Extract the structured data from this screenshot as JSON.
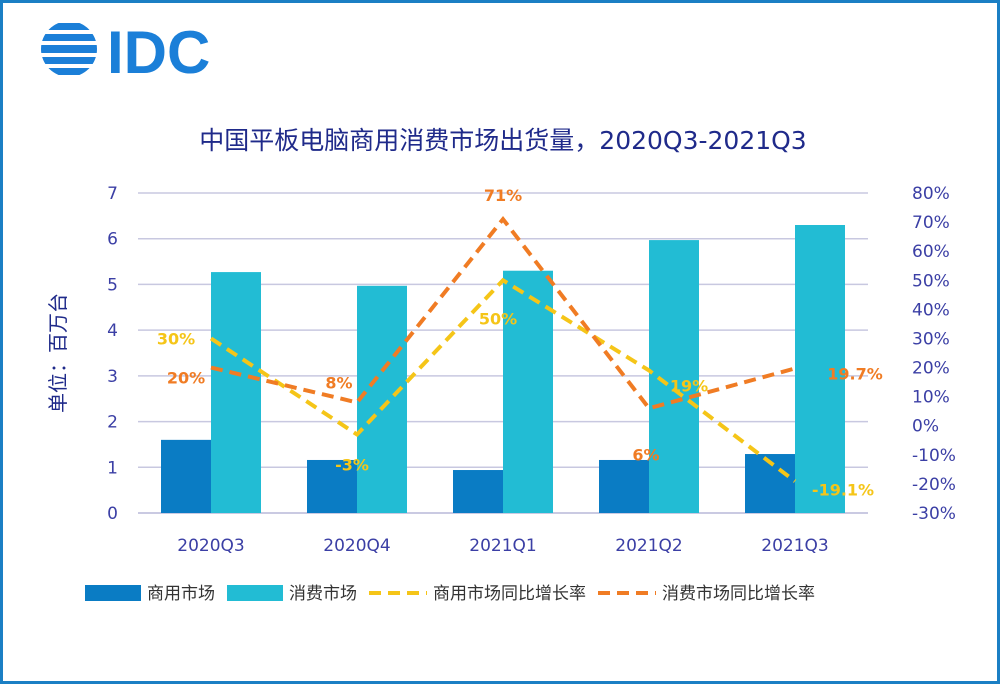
{
  "logo": "IDC",
  "chart_data": {
    "type": "bar+line",
    "title": "中国平板电脑商用消费市场出货量，2020Q3-2021Q3",
    "ylabel": "单位：百万台",
    "categories": [
      "2020Q3",
      "2020Q4",
      "2021Q1",
      "2021Q2",
      "2021Q3"
    ],
    "ylim": [
      0,
      7
    ],
    "yticks": [
      "0",
      "1",
      "2",
      "3",
      "4",
      "5",
      "6",
      "7"
    ],
    "y2lim": [
      -30,
      80
    ],
    "y2ticks": [
      "-30%",
      "-20%",
      "-10%",
      "0%",
      "10%",
      "20%",
      "30%",
      "40%",
      "50%",
      "60%",
      "70%",
      "80%"
    ],
    "grid": true,
    "legend_placement": "bottom",
    "series": [
      {
        "name": "商用市场",
        "type": "bar",
        "axis": "left",
        "color": "#0a7cc4",
        "values": [
          1.6,
          1.16,
          0.94,
          1.16,
          1.29
        ]
      },
      {
        "name": "消费市场",
        "type": "bar",
        "axis": "left",
        "color": "#22bcd4",
        "values": [
          5.27,
          4.97,
          5.3,
          5.97,
          6.3
        ]
      },
      {
        "name": "商用市场同比增长率",
        "type": "line",
        "axis": "right",
        "dashed": true,
        "color": "#f5c518",
        "values": [
          30,
          -3,
          50,
          19,
          -19.1
        ],
        "labels": [
          "30%",
          "-3%",
          "50%",
          "19%",
          "-19.1%"
        ]
      },
      {
        "name": "消费市场同比增长率",
        "type": "line",
        "axis": "right",
        "dashed": true,
        "color": "#f07c24",
        "values": [
          20,
          8,
          71,
          6,
          19.7
        ],
        "labels": [
          "20%",
          "8%",
          "71%",
          "6%",
          "19.7%"
        ]
      }
    ]
  }
}
